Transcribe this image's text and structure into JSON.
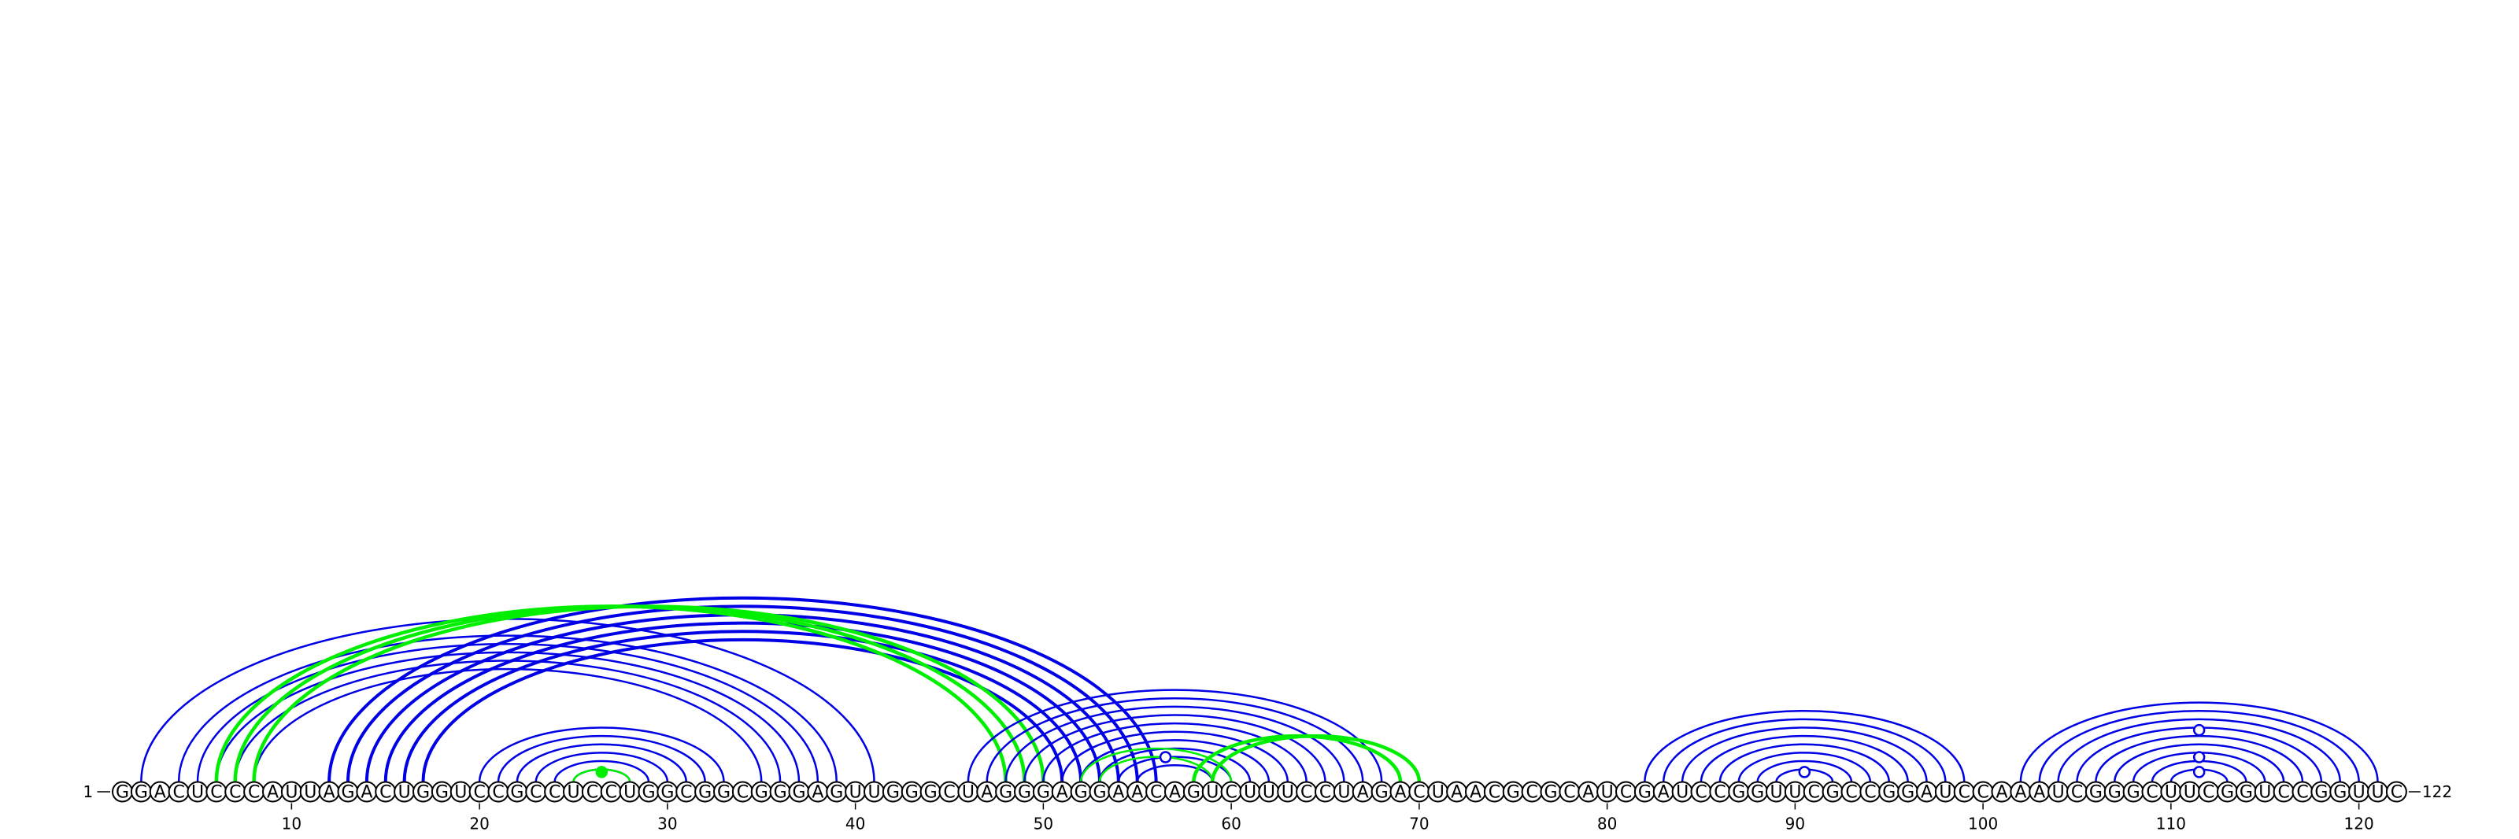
{
  "sequence": "GGACUCCCAUUAGACUGGUCCGCCUCCUGGCGGCGGGAGUUGGGCUAGGGAGGAACAGUCUUUCCUAGACUAACGCGCAUCGAUCCGGUUCGCCGGAUCCAAAUCGGGCUUCGGUCCGGUUC",
  "five_prime_label": "1",
  "three_prime_label": "122",
  "ticks": [
    10,
    20,
    30,
    40,
    50,
    60,
    70,
    80,
    90,
    100,
    110,
    120
  ],
  "colors": {
    "blue": "#0000e6",
    "green": "#00ee00"
  },
  "arc_groups": [
    {
      "color": "blue",
      "weight": 2.5,
      "pairs": [
        [
          2,
          41
        ],
        [
          4,
          39
        ],
        [
          5,
          38
        ],
        [
          6,
          37
        ],
        [
          7,
          36
        ],
        [
          8,
          35
        ]
      ]
    },
    {
      "color": "blue",
      "weight": 4,
      "pairs": [
        [
          12,
          56
        ],
        [
          13,
          55
        ],
        [
          14,
          54
        ],
        [
          15,
          53
        ],
        [
          16,
          52
        ],
        [
          17,
          51
        ]
      ]
    },
    {
      "color": "green",
      "weight": 4.5,
      "pairs": [
        [
          6,
          48
        ],
        [
          7,
          49
        ],
        [
          8,
          50
        ]
      ]
    },
    {
      "color": "blue",
      "weight": 2.5,
      "pairs": [
        [
          20,
          33
        ],
        [
          21,
          32
        ],
        [
          22,
          31
        ],
        [
          23,
          30
        ],
        [
          24,
          29
        ],
        [
          25,
          28
        ]
      ]
    },
    {
      "color": "green",
      "weight": 2.5,
      "pairs": [
        [
          25,
          28
        ]
      ]
    },
    {
      "color": "blue",
      "weight": 2.5,
      "pairs": [
        [
          46,
          68
        ],
        [
          47,
          67
        ],
        [
          48,
          66
        ],
        [
          49,
          65
        ],
        [
          50,
          64
        ],
        [
          51,
          63
        ],
        [
          52,
          62
        ],
        [
          53,
          61
        ],
        [
          54,
          60
        ],
        [
          55,
          59
        ]
      ]
    },
    {
      "color": "green",
      "weight": 2.5,
      "pairs": [
        [
          52,
          60
        ],
        [
          53,
          59
        ]
      ]
    },
    {
      "color": "green",
      "weight": 4.5,
      "pairs": [
        [
          58,
          69
        ],
        [
          59,
          70
        ]
      ]
    },
    {
      "color": "blue",
      "weight": 2.5,
      "pairs": [
        [
          82,
          99
        ],
        [
          83,
          98
        ],
        [
          84,
          97
        ],
        [
          85,
          96
        ],
        [
          86,
          95
        ],
        [
          87,
          94
        ],
        [
          88,
          93
        ],
        [
          89,
          92
        ]
      ]
    },
    {
      "color": "blue",
      "weight": 2.5,
      "pairs": [
        [
          102,
          121
        ],
        [
          103,
          120
        ],
        [
          104,
          119
        ],
        [
          105,
          118
        ],
        [
          106,
          117
        ],
        [
          107,
          116
        ],
        [
          108,
          115
        ],
        [
          109,
          114
        ],
        [
          110,
          113
        ]
      ]
    }
  ],
  "markers": [
    {
      "pos": 26.5,
      "height": 0.22,
      "style": "filled-green"
    },
    {
      "pos": 56.5,
      "height": 0.55,
      "style": "open-blue"
    },
    {
      "pos": 90.5,
      "height": 0.22,
      "style": "open-blue"
    },
    {
      "pos": 111.5,
      "height": 0.22,
      "style": "open-blue"
    },
    {
      "pos": 111.5,
      "height": 0.55,
      "style": "open-blue"
    },
    {
      "pos": 111.5,
      "height": 1.15,
      "style": "open-blue"
    }
  ]
}
